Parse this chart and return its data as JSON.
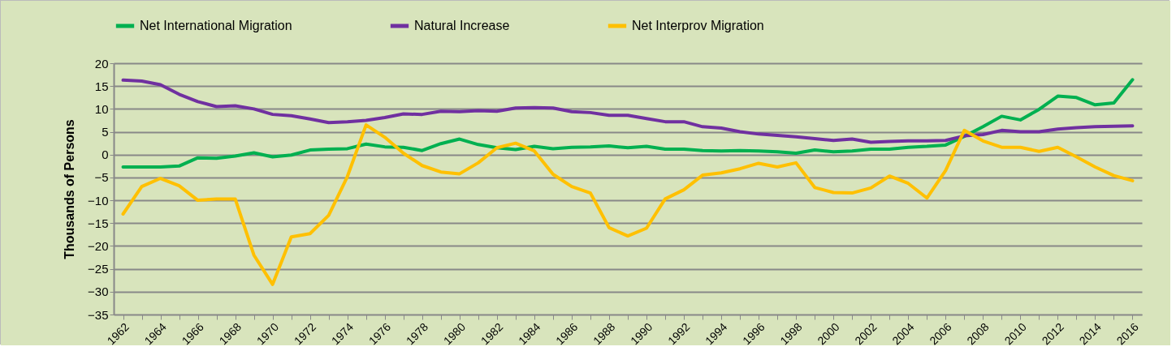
{
  "chart_data": {
    "type": "line",
    "ylabel": "Thousands of Persons",
    "categories": [
      "1962",
      null,
      "1964",
      null,
      "1966",
      null,
      "1968",
      null,
      "1970",
      null,
      "1972",
      null,
      "1974",
      null,
      "1976",
      null,
      "1978",
      null,
      "1980",
      null,
      "1982",
      null,
      "1984",
      null,
      "1986",
      null,
      "1988",
      null,
      "1990",
      null,
      "1992",
      null,
      "1994",
      null,
      "1996",
      null,
      "1998",
      null,
      "2000",
      null,
      "2002",
      null,
      "2004",
      null,
      "2006",
      null,
      "2008",
      null,
      "2010",
      null,
      "2012",
      null,
      "2014",
      null,
      "2016"
    ],
    "series": [
      {
        "name": "Net International Migration",
        "color": "#00b050",
        "values": [
          -2.7,
          -2.7,
          -2.7,
          -2.5,
          -0.7,
          -0.8,
          -0.3,
          0.4,
          -0.5,
          -0.1,
          1.0,
          1.2,
          1.3,
          2.3,
          1.7,
          1.6,
          0.9,
          2.4,
          3.4,
          2.2,
          1.5,
          1.1,
          1.8,
          1.3,
          1.6,
          1.7,
          1.9,
          1.5,
          1.8,
          1.2,
          1.2,
          0.9,
          0.8,
          0.9,
          0.8,
          0.6,
          0.3,
          1.0,
          0.6,
          0.8,
          1.2,
          1.2,
          1.6,
          1.8,
          2.1,
          4.0,
          6.1,
          8.4,
          7.6,
          9.9,
          12.8,
          12.5,
          10.9,
          11.3,
          16.4
        ]
      },
      {
        "name": "Natural Increase",
        "color": "#7030a0",
        "values": [
          16.3,
          16.1,
          15.3,
          13.2,
          11.6,
          10.5,
          10.7,
          10.0,
          8.8,
          8.5,
          7.8,
          7.0,
          7.2,
          7.5,
          8.1,
          8.9,
          8.8,
          9.5,
          9.4,
          9.6,
          9.5,
          10.2,
          10.3,
          10.2,
          9.4,
          9.2,
          8.6,
          8.6,
          7.9,
          7.2,
          7.2,
          6.1,
          5.8,
          5.0,
          4.5,
          4.2,
          3.9,
          3.5,
          3.1,
          3.4,
          2.7,
          2.9,
          3.0,
          3.0,
          3.1,
          4.1,
          4.4,
          5.3,
          5.0,
          5.0,
          5.6,
          5.9,
          6.1,
          6.2,
          6.3
        ]
      },
      {
        "name": "Net Interprov Migration",
        "color": "#ffc000",
        "values": [
          -13.0,
          -7.0,
          -5.2,
          -6.8,
          -10.0,
          -9.7,
          -9.7,
          -22.0,
          -28.4,
          -18.0,
          -17.3,
          -13.3,
          -4.8,
          6.5,
          3.8,
          0.3,
          -2.4,
          -3.8,
          -4.2,
          -1.8,
          1.5,
          2.5,
          0.8,
          -4.3,
          -7.0,
          -8.4,
          -16.0,
          -17.8,
          -16.1,
          -9.7,
          -7.7,
          -4.5,
          -4.0,
          -3.1,
          -1.9,
          -2.7,
          -1.8,
          -7.2,
          -8.3,
          -8.4,
          -7.3,
          -4.7,
          -6.3,
          -9.5,
          -3.5,
          5.3,
          3.0,
          1.6,
          1.6,
          0.7,
          1.6,
          -0.5,
          -2.7,
          -4.6,
          -5.7
        ]
      }
    ],
    "ylim": [
      -35,
      20
    ],
    "yticks": [
      -35,
      -30,
      -25,
      -20,
      -15,
      -10,
      -5,
      0,
      5,
      10,
      15,
      20
    ],
    "grid": "y",
    "legend": "top",
    "marker": "none",
    "line_style": "solid"
  }
}
